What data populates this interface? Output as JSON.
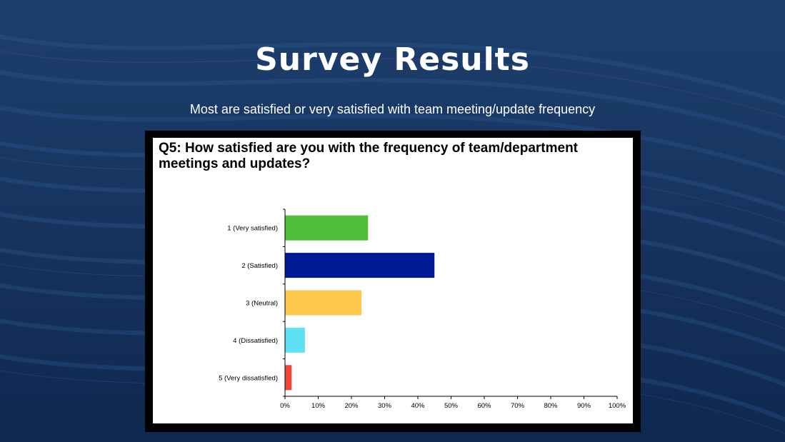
{
  "slide": {
    "title": "Survey Results",
    "subtitle": "Most are satisfied or very satisfied with team meeting/update frequency"
  },
  "chart_data": {
    "type": "bar",
    "orientation": "horizontal",
    "title": "Q5: How satisfied are you with the frequency of team/department meetings and updates?",
    "categories": [
      "1 (Very satisfied)",
      "2 (Satisfied)",
      "3 (Neutral)",
      "4 (Dissatisfied)",
      "5 (Very dissatisfied)"
    ],
    "values": [
      25,
      45,
      23,
      6,
      2
    ],
    "value_unit": "%",
    "colors": [
      "#4fbf3a",
      "#001a96",
      "#fdc74c",
      "#5ee0f5",
      "#f0433a"
    ],
    "xlim": [
      0,
      100
    ],
    "x_ticks": [
      "0%",
      "10%",
      "20%",
      "30%",
      "40%",
      "50%",
      "60%",
      "70%",
      "80%",
      "90%",
      "100%"
    ],
    "xlabel": "",
    "ylabel": "",
    "grid": false,
    "legend": "none"
  },
  "colors": {
    "background": "#173560",
    "frame": "#000000",
    "panel": "#ffffff",
    "text_light": "#ffffff"
  }
}
